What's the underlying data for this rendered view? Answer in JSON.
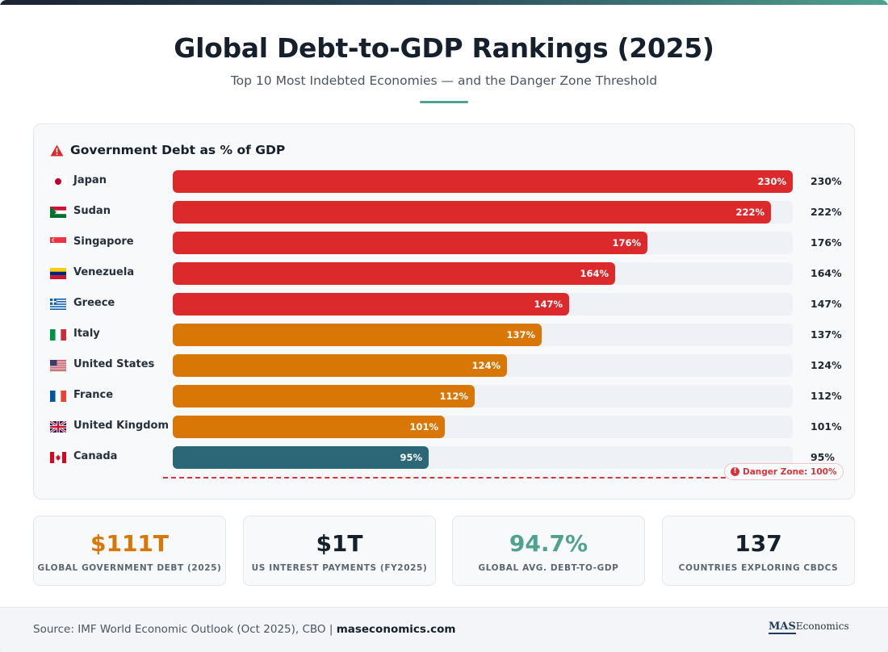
{
  "title": "Global Debt-to-GDP Rankings (2025)",
  "subtitle": "Top 10 Most Indebted Economies — and the Danger Zone Threshold",
  "panel_title": "Government Debt as % of GDP",
  "colors": {
    "red": "#dc2a2c",
    "orange": "#d97706",
    "teal": "#2c6777",
    "track": "#eef1f5",
    "danger": "#d8333a"
  },
  "chart_data": {
    "type": "bar",
    "orientation": "horizontal",
    "title": "Government Debt as % of GDP",
    "unit": "%",
    "xlim": [
      0,
      230
    ],
    "categories": [
      "Japan",
      "Sudan",
      "Singapore",
      "Venezuela",
      "Greece",
      "Italy",
      "United States",
      "France",
      "United Kingdom",
      "Canada"
    ],
    "values": [
      230,
      222,
      176,
      164,
      147,
      137,
      124,
      112,
      101,
      95
    ],
    "bar_labels": [
      "230%",
      "222%",
      "176%",
      "164%",
      "147%",
      "137%",
      "124%",
      "112%",
      "101%",
      "95%"
    ],
    "bar_colors": [
      "red",
      "red",
      "red",
      "red",
      "red",
      "orange",
      "orange",
      "orange",
      "orange",
      "teal"
    ],
    "flags": [
      "japan-flag",
      "sudan-flag",
      "singapore-flag",
      "venezuela-flag",
      "greece-flag",
      "italy-flag",
      "usa-flag",
      "france-flag",
      "uk-flag",
      "canada-flag"
    ],
    "threshold": {
      "value": 100,
      "label": "Danger Zone: 100%"
    }
  },
  "stats": [
    {
      "value": "$111T",
      "label": "GLOBAL GOVERNMENT DEBT (2025)",
      "color": "#d97706"
    },
    {
      "value": "$1T",
      "label": "US INTEREST PAYMENTS (FY2025)",
      "color": "#15202b"
    },
    {
      "value": "94.7%",
      "label": "GLOBAL AVG. DEBT-TO-GDP",
      "color": "#4fa28f"
    },
    {
      "value": "137",
      "label": "COUNTRIES EXPLORING CBDCS",
      "color": "#15202b"
    }
  ],
  "footer": {
    "source_text": "Source: IMF World Economic Outlook (Oct 2025), CBO | ",
    "source_link": "maseconomics.com",
    "brand_a": "MAS",
    "brand_b": "Economics"
  }
}
